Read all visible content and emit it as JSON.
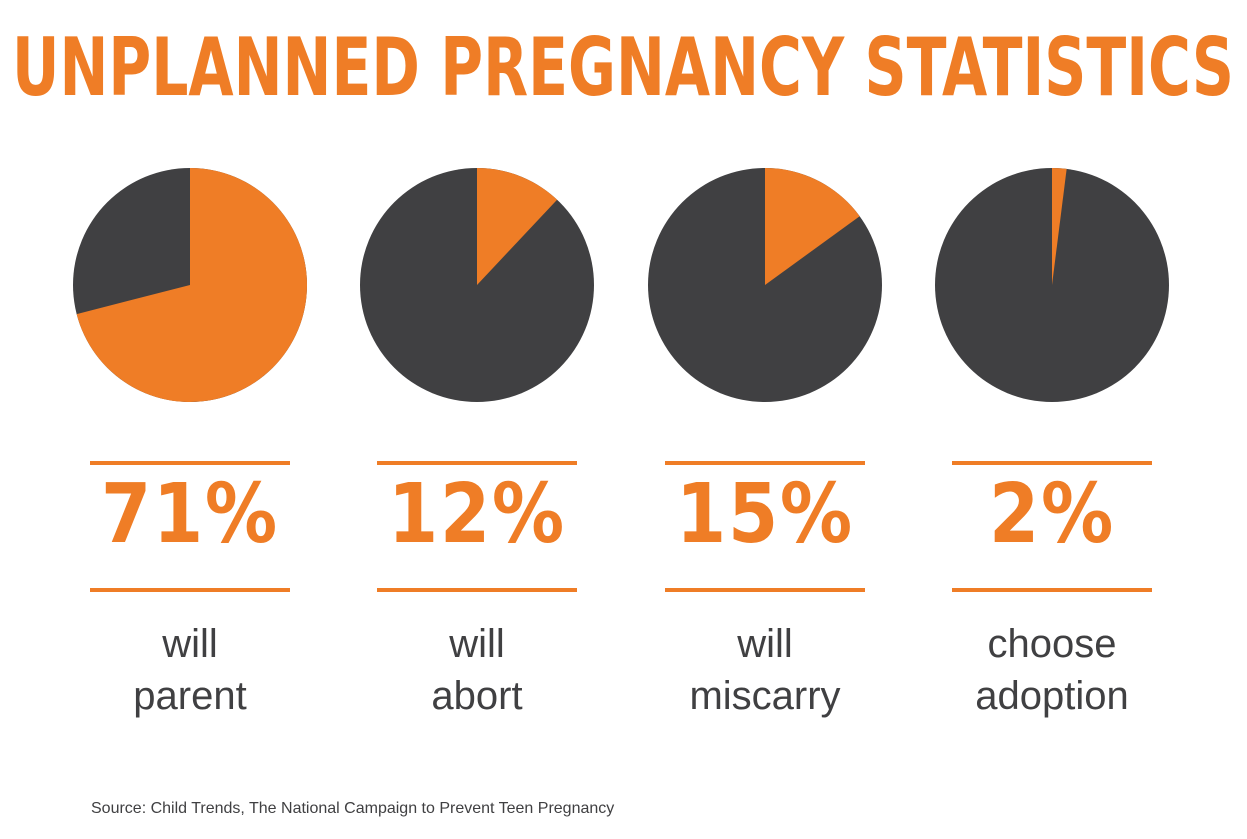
{
  "title": "UNPLANNED PREGNANCY STATISTICS",
  "colors": {
    "accent": "#ef7d26",
    "dark": "#404042"
  },
  "chart_data": [
    {
      "type": "pie",
      "values": [
        71,
        29
      ],
      "highlight_value": 71,
      "label": "71%",
      "caption_line1": "will",
      "caption_line2": "parent"
    },
    {
      "type": "pie",
      "values": [
        12,
        88
      ],
      "highlight_value": 12,
      "label": "12%",
      "caption_line1": "will",
      "caption_line2": "abort"
    },
    {
      "type": "pie",
      "values": [
        15,
        85
      ],
      "highlight_value": 15,
      "label": "15%",
      "caption_line1": "will",
      "caption_line2": "miscarry"
    },
    {
      "type": "pie",
      "values": [
        2,
        98
      ],
      "highlight_value": 2,
      "label": "2%",
      "caption_line1": "choose",
      "caption_line2": "adoption"
    }
  ],
  "source": "Source: Child Trends, The National Campaign to Prevent Teen Pregnancy"
}
